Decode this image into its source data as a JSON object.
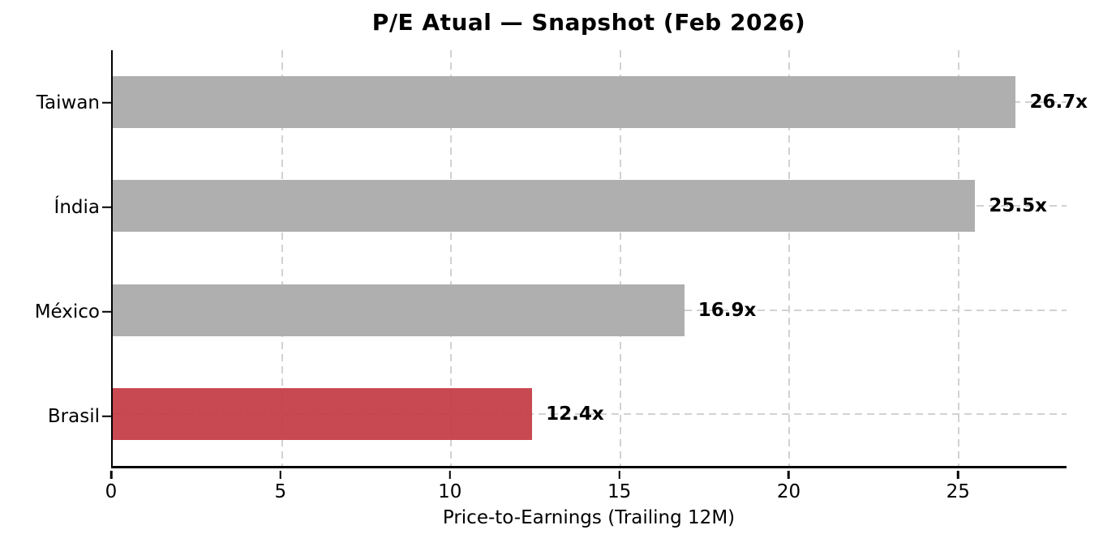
{
  "chart_data": {
    "type": "bar",
    "orientation": "horizontal",
    "title": "P/E Atual — Snapshot (Feb 2026)",
    "xlabel": "Price-to-Earnings (Trailing 12M)",
    "categories": [
      "Taiwan",
      "Índia",
      "México",
      "Brasil"
    ],
    "values": [
      26.7,
      25.5,
      16.9,
      12.4
    ],
    "value_labels": [
      "26.7x",
      "25.5x",
      "16.9x",
      "12.4x"
    ],
    "bar_colors": [
      "#afafaf",
      "#afafaf",
      "#afafaf",
      "#c43a44"
    ],
    "highlight_category": "Brasil",
    "xlim": [
      0,
      28.2
    ],
    "xticks": [
      5,
      10,
      15,
      20,
      25
    ],
    "xtick_all": [
      0,
      5,
      10,
      15,
      20,
      25
    ],
    "xtick_labels": [
      "0",
      "5",
      "10",
      "15",
      "20",
      "25"
    ],
    "grid": "dashed",
    "legend": "none",
    "colors": {
      "default_bar": "#afafaf",
      "highlight_bar": "#c9444e",
      "gridline": "#d2d2d2",
      "axis": "#000000",
      "text": "#000000",
      "background": "#ffffff"
    }
  }
}
